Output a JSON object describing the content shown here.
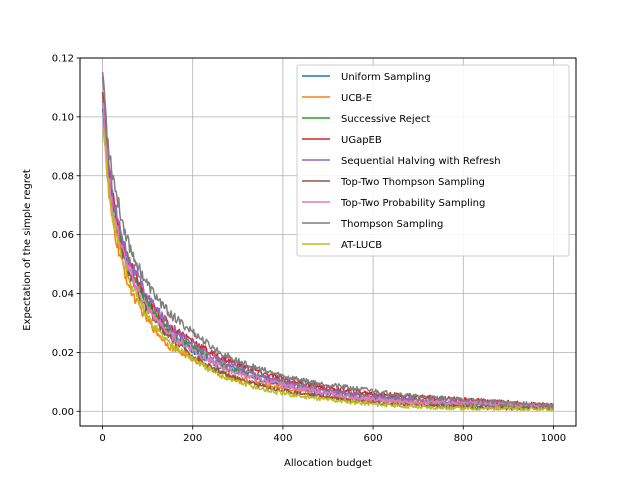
{
  "chart_data": {
    "type": "line",
    "title": "",
    "xlabel": "Allocation budget",
    "ylabel": "Expectation of the simple regret",
    "xlim": [
      -50,
      1050
    ],
    "ylim": [
      -0.005,
      0.12
    ],
    "xticks": [
      0,
      200,
      400,
      600,
      800,
      1000
    ],
    "yticks": [
      0.0,
      0.02,
      0.04,
      0.06,
      0.08,
      0.1,
      0.12
    ],
    "xtick_labels": [
      "0",
      "200",
      "400",
      "600",
      "800",
      "1000"
    ],
    "ytick_labels": [
      "0.00",
      "0.02",
      "0.04",
      "0.06",
      "0.08",
      "0.10",
      "0.12"
    ],
    "grid": true,
    "legend_position": "top-right",
    "x": [
      0,
      5,
      10,
      20,
      40,
      60,
      80,
      100,
      150,
      200,
      250,
      300,
      400,
      500,
      600,
      700,
      800,
      900,
      1000
    ],
    "series": [
      {
        "name": "Uniform Sampling",
        "color": "#1f77b4",
        "values": [
          0.1,
          0.095,
          0.085,
          0.072,
          0.058,
          0.048,
          0.042,
          0.036,
          0.026,
          0.021,
          0.016,
          0.013,
          0.009,
          0.006,
          0.004,
          0.003,
          0.002,
          0.0015,
          0.0015
        ]
      },
      {
        "name": "UCB-E",
        "color": "#ff7f0e",
        "values": [
          0.098,
          0.092,
          0.08,
          0.066,
          0.052,
          0.042,
          0.036,
          0.031,
          0.022,
          0.018,
          0.014,
          0.011,
          0.008,
          0.005,
          0.004,
          0.003,
          0.0025,
          0.002,
          0.002
        ]
      },
      {
        "name": "Successive Reject",
        "color": "#2ca02c",
        "values": [
          0.105,
          0.098,
          0.088,
          0.074,
          0.06,
          0.05,
          0.043,
          0.037,
          0.027,
          0.022,
          0.017,
          0.014,
          0.01,
          0.007,
          0.005,
          0.004,
          0.003,
          0.002,
          0.0015
        ]
      },
      {
        "name": "UGapEB",
        "color": "#d62728",
        "values": [
          0.108,
          0.1,
          0.09,
          0.075,
          0.06,
          0.05,
          0.044,
          0.038,
          0.029,
          0.024,
          0.019,
          0.016,
          0.011,
          0.008,
          0.006,
          0.005,
          0.004,
          0.003,
          0.002
        ]
      },
      {
        "name": "Sequential Halving with Refresh",
        "color": "#9467bd",
        "values": [
          0.113,
          0.104,
          0.092,
          0.076,
          0.061,
          0.051,
          0.045,
          0.039,
          0.029,
          0.023,
          0.018,
          0.015,
          0.01,
          0.007,
          0.005,
          0.004,
          0.003,
          0.002,
          0.0015
        ]
      },
      {
        "name": "Top-Two Thompson Sampling",
        "color": "#8c564b",
        "values": [
          0.112,
          0.1,
          0.086,
          0.07,
          0.056,
          0.046,
          0.04,
          0.034,
          0.025,
          0.019,
          0.014,
          0.011,
          0.007,
          0.005,
          0.003,
          0.002,
          0.0015,
          0.001,
          0.001
        ]
      },
      {
        "name": "Top-Two Probability Sampling",
        "color": "#e377c2",
        "values": [
          0.105,
          0.096,
          0.085,
          0.071,
          0.057,
          0.047,
          0.041,
          0.035,
          0.026,
          0.021,
          0.016,
          0.013,
          0.009,
          0.006,
          0.004,
          0.003,
          0.003,
          0.0025,
          0.002
        ]
      },
      {
        "name": "Thompson Sampling",
        "color": "#7f7f7f",
        "values": [
          0.114,
          0.106,
          0.095,
          0.083,
          0.067,
          0.056,
          0.049,
          0.043,
          0.033,
          0.027,
          0.021,
          0.017,
          0.012,
          0.009,
          0.007,
          0.005,
          0.004,
          0.003,
          0.002
        ]
      },
      {
        "name": "AT-LUCB",
        "color": "#bcbd22",
        "values": [
          0.095,
          0.09,
          0.08,
          0.068,
          0.054,
          0.044,
          0.038,
          0.032,
          0.023,
          0.018,
          0.013,
          0.01,
          0.006,
          0.004,
          0.0025,
          0.0015,
          0.001,
          0.001,
          0.0005
        ]
      }
    ]
  }
}
